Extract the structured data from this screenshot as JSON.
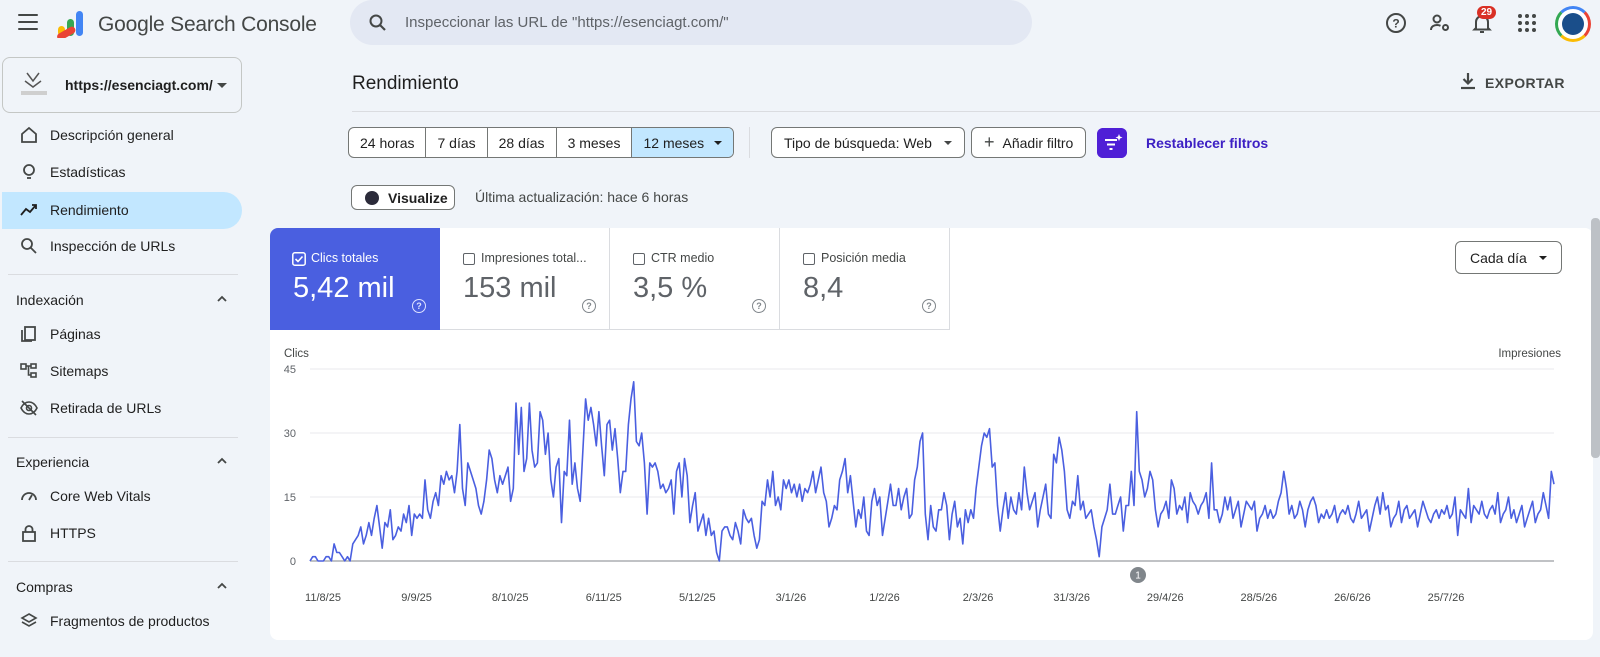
{
  "app": {
    "title": "Google Search Console",
    "search_placeholder": "Inspeccionar las URL de \"https://esenciagt.com/\"",
    "notifications_count": "29"
  },
  "property": {
    "url": "https://esenciagt.com/"
  },
  "sidebar": {
    "items": [
      {
        "label": "Descripción general",
        "icon": "home-icon"
      },
      {
        "label": "Estadísticas",
        "icon": "lightbulb-icon"
      },
      {
        "label": "Rendimiento",
        "icon": "trending-up-icon",
        "active": true
      },
      {
        "label": "Inspección de URLs",
        "icon": "search-icon"
      }
    ],
    "sections": [
      {
        "title": "Indexación",
        "items": [
          {
            "label": "Páginas",
            "icon": "pages-icon"
          },
          {
            "label": "Sitemaps",
            "icon": "sitemap-icon"
          },
          {
            "label": "Retirada de URLs",
            "icon": "eye-off-icon"
          }
        ]
      },
      {
        "title": "Experiencia",
        "items": [
          {
            "label": "Core Web Vitals",
            "icon": "gauge-icon"
          },
          {
            "label": "HTTPS",
            "icon": "lock-icon"
          }
        ]
      },
      {
        "title": "Compras",
        "items": [
          {
            "label": "Fragmentos de productos",
            "icon": "layers-icon"
          }
        ]
      }
    ]
  },
  "main": {
    "title": "Rendimiento",
    "export_label": "EXPORTAR",
    "ranges": [
      "24 horas",
      "7 días",
      "28 días",
      "3 meses",
      "12 meses"
    ],
    "selected_range": "12 meses",
    "search_type": "Tipo de búsqueda: Web",
    "add_filter": "Añadir filtro",
    "reset_filters": "Restablecer filtros",
    "visualize": "Visualize",
    "last_update": "Última actualización: hace 6 horas",
    "granularity": "Cada día"
  },
  "metrics": [
    {
      "label": "Clics totales",
      "value": "5,42 mil",
      "checked": true
    },
    {
      "label": "Impresiones total...",
      "value": "153 mil",
      "checked": false
    },
    {
      "label": "CTR medio",
      "value": "3,5 %",
      "checked": false
    },
    {
      "label": "Posición media",
      "value": "8,4",
      "checked": false
    }
  ],
  "colors": {
    "clicks": "#4a5fe0",
    "accent": "#c2e7ff",
    "filter": "#4f1fd6"
  },
  "chart_data": {
    "type": "line",
    "ylabel": "Clics",
    "y2label": "Impresiones",
    "ylim": [
      0,
      45
    ],
    "yticks": [
      0,
      15,
      30,
      45
    ],
    "xticks": [
      "11/8/25",
      "9/9/25",
      "8/10/25",
      "6/11/25",
      "5/12/25",
      "3/1/26",
      "1/2/26",
      "2/3/26",
      "31/3/26",
      "29/4/26",
      "28/5/26",
      "26/6/26",
      "25/7/26"
    ],
    "annotation": {
      "label": "1",
      "date": "~18/4/26"
    },
    "series": [
      {
        "values": [
          0,
          1,
          1,
          0,
          0,
          0,
          1,
          1,
          0,
          4,
          2,
          2,
          1,
          0,
          1,
          0,
          4,
          5,
          6,
          8,
          4,
          6,
          9,
          6,
          10,
          13,
          8,
          3,
          9,
          8,
          12,
          5,
          6,
          8,
          7,
          11,
          9,
          13,
          6,
          11,
          10,
          11,
          10,
          19,
          12,
          10,
          14,
          16,
          13,
          20,
          18,
          21,
          19,
          20,
          16,
          21,
          32,
          17,
          13,
          23,
          21,
          19,
          17,
          13,
          11,
          14,
          19,
          26,
          24,
          19,
          16,
          20,
          18,
          20,
          22,
          14,
          17,
          37,
          25,
          36,
          21,
          24,
          37,
          26,
          22,
          23,
          35,
          33,
          25,
          30,
          19,
          15,
          22,
          24,
          9,
          21,
          20,
          33,
          18,
          23,
          17,
          14,
          26,
          38,
          33,
          36,
          32,
          27,
          35,
          27,
          20,
          32,
          33,
          26,
          31,
          24,
          16,
          21,
          21,
          32,
          38,
          42,
          28,
          27,
          30,
          23,
          11,
          23,
          22,
          23,
          21,
          17,
          18,
          16,
          17,
          19,
          11,
          21,
          23,
          15,
          24,
          20,
          9,
          13,
          16,
          7,
          9,
          11,
          6,
          10,
          6,
          7,
          2,
          0,
          7,
          8,
          8,
          6,
          5,
          9,
          7,
          4,
          12,
          10,
          9,
          10,
          6,
          3,
          5,
          14,
          13,
          19,
          15,
          21,
          13,
          15,
          12,
          19,
          17,
          19,
          16,
          18,
          15,
          18,
          14,
          17,
          16,
          18,
          21,
          16,
          19,
          22,
          16,
          14,
          8,
          10,
          13,
          12,
          19,
          21,
          24,
          16,
          20,
          14,
          8,
          12,
          10,
          15,
          7,
          6,
          14,
          17,
          13,
          15,
          6,
          10,
          14,
          18,
          13,
          13,
          17,
          12,
          15,
          17,
          10,
          11,
          19,
          22,
          28,
          30,
          11,
          5,
          13,
          8,
          7,
          12,
          12,
          16,
          13,
          5,
          11,
          14,
          8,
          10,
          4,
          12,
          9,
          12,
          10,
          17,
          22,
          27,
          30,
          29,
          31,
          22,
          23,
          13,
          7,
          12,
          16,
          10,
          15,
          12,
          11,
          16,
          12,
          22,
          16,
          12,
          14,
          16,
          8,
          12,
          15,
          18,
          11,
          10,
          25,
          23,
          29,
          26,
          21,
          12,
          10,
          14,
          13,
          20,
          12,
          14,
          10,
          11,
          12,
          8,
          5,
          1,
          8,
          10,
          12,
          18,
          11,
          11,
          13,
          15,
          7,
          13,
          13,
          21,
          13,
          35,
          21,
          19,
          15,
          17,
          21,
          19,
          12,
          8,
          11,
          12,
          14,
          10,
          19,
          17,
          11,
          13,
          12,
          15,
          9,
          16,
          14,
          13,
          11,
          13,
          14,
          16,
          10,
          23,
          12,
          12,
          9,
          11,
          15,
          12,
          15,
          10,
          12,
          14,
          8,
          11,
          14,
          13,
          12,
          14,
          7,
          10,
          11,
          13,
          10,
          12,
          10,
          11,
          14,
          16,
          21,
          17,
          11,
          13,
          10,
          11,
          14,
          12,
          8,
          12,
          14,
          15,
          13,
          9,
          11,
          10,
          12,
          10,
          11,
          13,
          9,
          11,
          12,
          11,
          13,
          10,
          9,
          11,
          14,
          10,
          11,
          12,
          7,
          10,
          13,
          15,
          11,
          16,
          12,
          13,
          8,
          10,
          11,
          14,
          9,
          12,
          13,
          10,
          11,
          12,
          8,
          11,
          14,
          12,
          10,
          9,
          11,
          12,
          10,
          12,
          11,
          13,
          10,
          11,
          15,
          6,
          12,
          11,
          10,
          17,
          9,
          13,
          12,
          11,
          14,
          11,
          10,
          12,
          13,
          11,
          16,
          9,
          11,
          12,
          15,
          10,
          12,
          9,
          11,
          13,
          8,
          10,
          12,
          14,
          9,
          11,
          12,
          16,
          13,
          10,
          21,
          18
        ]
      }
    ]
  }
}
